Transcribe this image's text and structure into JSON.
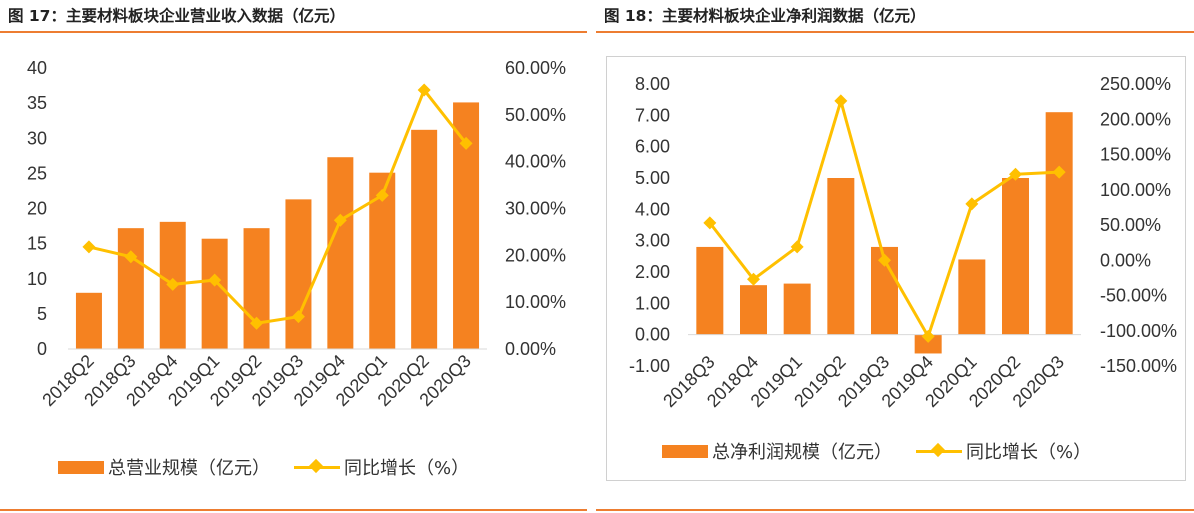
{
  "colors": {
    "accent_rule": "#ED7D31",
    "bar": "#F58220",
    "line": "#FFC000",
    "axis_text": "#333333"
  },
  "figures": {
    "left": {
      "title": "图 17：主要材料板块企业营业收入数据（亿元）"
    },
    "right": {
      "title": "图 18：主要材料板块企业净利润数据（亿元）"
    }
  },
  "chart_data": [
    {
      "type": "bar",
      "title": "",
      "categories": [
        "2018Q2",
        "2018Q3",
        "2018Q4",
        "2019Q1",
        "2019Q2",
        "2019Q3",
        "2019Q4",
        "2020Q1",
        "2020Q2",
        "2020Q3"
      ],
      "series": [
        {
          "name": "总营业规模（亿元）",
          "type": "bar",
          "axis": "left",
          "values": [
            8.0,
            17.2,
            18.1,
            15.7,
            17.2,
            21.3,
            27.3,
            25.1,
            31.2,
            35.1
          ]
        },
        {
          "name": "同比增长（%）",
          "type": "line",
          "axis": "right",
          "values": [
            21.8,
            19.7,
            13.8,
            14.7,
            5.5,
            6.9,
            27.5,
            32.8,
            55.3,
            43.9
          ]
        }
      ],
      "y_left": {
        "min": 0,
        "max": 40,
        "ticks": [
          "0",
          "5",
          "10",
          "15",
          "20",
          "25",
          "30",
          "35",
          "40"
        ]
      },
      "y_right": {
        "min": 0,
        "max": 60,
        "ticks": [
          "0.00%",
          "10.00%",
          "20.00%",
          "30.00%",
          "40.00%",
          "50.00%",
          "60.00%"
        ]
      },
      "grid": false,
      "legend": "bottom"
    },
    {
      "type": "bar",
      "title": "",
      "categories": [
        "2018Q3",
        "2018Q4",
        "2019Q1",
        "2019Q2",
        "2019Q3",
        "2019Q4",
        "2020Q1",
        "2020Q2",
        "2020Q3"
      ],
      "series": [
        {
          "name": "总净利润规模（亿元）",
          "type": "bar",
          "axis": "left",
          "values": [
            2.8,
            1.58,
            1.63,
            5.0,
            2.8,
            -0.6,
            2.4,
            5.0,
            7.1
          ]
        },
        {
          "name": "同比增长（%）",
          "type": "line",
          "axis": "right",
          "values": [
            53,
            -27,
            19,
            226,
            0,
            -108,
            80,
            122,
            125
          ]
        }
      ],
      "y_left": {
        "min": -1,
        "max": 8,
        "ticks": [
          "-1.00",
          "0.00",
          "1.00",
          "2.00",
          "3.00",
          "4.00",
          "5.00",
          "6.00",
          "7.00",
          "8.00"
        ]
      },
      "y_right": {
        "min": -150,
        "max": 250,
        "ticks": [
          "-150.00%",
          "-100.00%",
          "-50.00%",
          "0.00%",
          "50.00%",
          "100.00%",
          "150.00%",
          "200.00%",
          "250.00%"
        ]
      },
      "grid": false,
      "legend": "bottom"
    }
  ]
}
